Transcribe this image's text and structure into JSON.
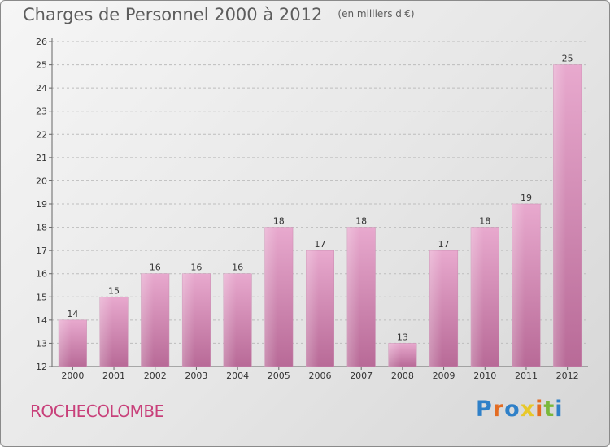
{
  "title": "Charges de Personnel 2000 à 2012",
  "subtitle": "(en milliers d'€)",
  "footer_name": "ROCHECOLOMBE",
  "brand": {
    "letters": [
      "P",
      "r",
      "o",
      "x",
      "i",
      "t",
      "i"
    ],
    "colors": [
      "#2f80c8",
      "#e36c22",
      "#2f80c8",
      "#e8c82a",
      "#e36c22",
      "#7ab83a",
      "#2f80c8"
    ]
  },
  "colors": {
    "bar_light": "#e8a9ce",
    "bar_dark": "#b86a97",
    "axis": "#666666",
    "grid": "#bdbdbd",
    "name": "#c8407a"
  },
  "chart_data": {
    "type": "bar",
    "title": "Charges de Personnel 2000 à 2012",
    "subtitle": "(en milliers d'€)",
    "categories": [
      "2000",
      "2001",
      "2002",
      "2003",
      "2004",
      "2005",
      "2006",
      "2007",
      "2008",
      "2009",
      "2010",
      "2011",
      "2012"
    ],
    "values": [
      14,
      15,
      16,
      16,
      16,
      18,
      17,
      18,
      13,
      17,
      18,
      19,
      25
    ],
    "ylim": [
      12,
      26
    ],
    "yticks": [
      12,
      13,
      14,
      15,
      16,
      17,
      18,
      19,
      20,
      21,
      22,
      23,
      24,
      25,
      26
    ],
    "grid": "horizontal dashed",
    "legend": "none"
  }
}
